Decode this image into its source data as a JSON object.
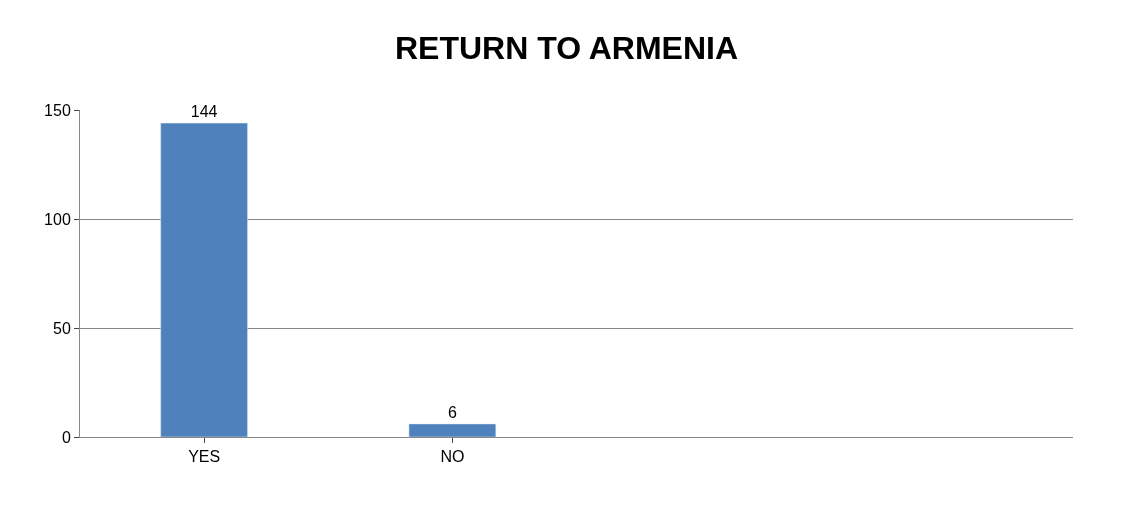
{
  "chart_data": {
    "type": "bar",
    "title": "RETURN TO ARMENIA",
    "categories": [
      "YES",
      "NO",
      null,
      null
    ],
    "series": [
      {
        "color": "#4f81bd",
        "values": [
          144,
          6,
          null,
          null
        ]
      }
    ],
    "ylim": [
      0,
      150
    ],
    "yticks": [
      0,
      50,
      100,
      150
    ],
    "grid": "y",
    "data_labels": true,
    "legend": false
  }
}
